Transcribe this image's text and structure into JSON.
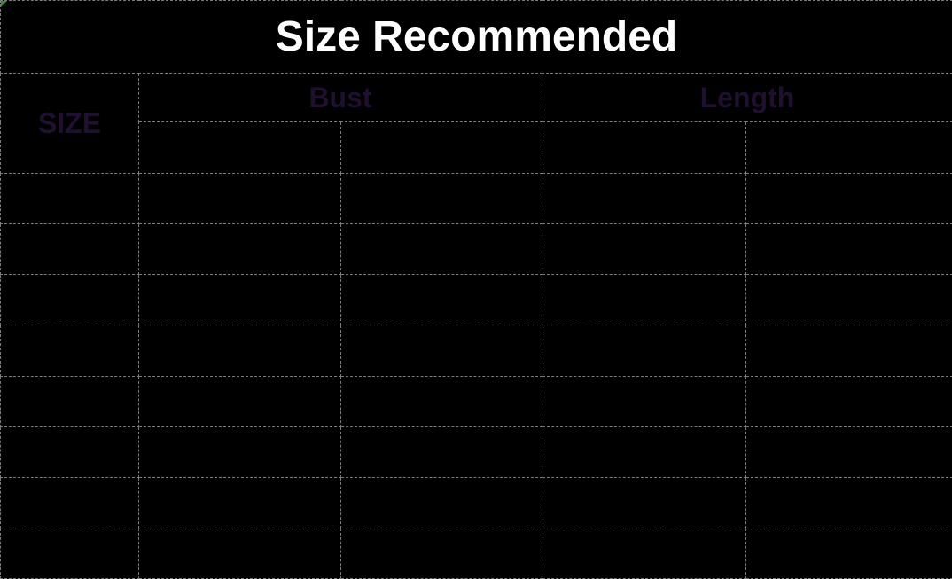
{
  "title": "Size Recommended",
  "table": {
    "corner_header": "SIZE",
    "group_headers": {
      "bust": "Bust",
      "length": "Length"
    },
    "sub_header_cells": [
      "",
      "",
      "",
      ""
    ],
    "body_rows": [
      [
        "",
        "",
        "",
        "",
        ""
      ],
      [
        "",
        "",
        "",
        "",
        ""
      ],
      [
        "",
        "",
        "",
        "",
        ""
      ],
      [
        "",
        "",
        "",
        "",
        ""
      ],
      [
        "",
        "",
        "",
        "",
        ""
      ],
      [
        "",
        "",
        "",
        "",
        ""
      ],
      [
        "",
        "",
        "",
        "",
        ""
      ],
      [
        "",
        "",
        "",
        "",
        ""
      ]
    ]
  },
  "colors": {
    "background": "#000000",
    "title_text": "#ffffff",
    "header_text": "#201030",
    "grid_line": "#7b7b7b",
    "corner_marker": "#2f8f2f"
  }
}
